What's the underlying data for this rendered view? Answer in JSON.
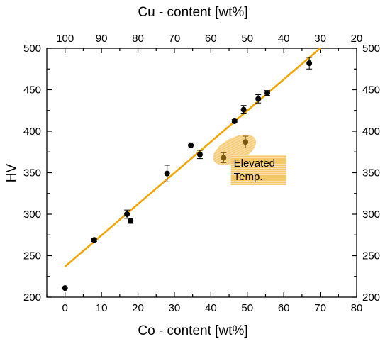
{
  "chart_data": {
    "type": "scatter",
    "xlabel": "Co - content [wt%]",
    "x2label": "Cu - content [wt%]",
    "ylabel": "HV",
    "xlim": [
      -5,
      80
    ],
    "ylim": [
      200,
      500
    ],
    "x_ticks": [
      "0",
      "10",
      "20",
      "30",
      "40",
      "50",
      "60",
      "70",
      "80"
    ],
    "x_tick_values": [
      0,
      10,
      20,
      30,
      40,
      50,
      60,
      70,
      80
    ],
    "x2_ticks": [
      "100",
      "90",
      "80",
      "70",
      "60",
      "50",
      "40",
      "30",
      "20"
    ],
    "x2_tick_values": [
      100,
      90,
      80,
      70,
      60,
      50,
      40,
      30,
      20
    ],
    "y_ticks": [
      "200",
      "250",
      "300",
      "350",
      "400",
      "450",
      "500"
    ],
    "y_tick_values": [
      200,
      250,
      300,
      350,
      400,
      450,
      500
    ],
    "grid": false,
    "colors": {
      "fit_line": "#f0a500",
      "points": "#000000",
      "elevated_points": "#7a5a10",
      "highlight": "#f4c76b"
    },
    "series": [
      {
        "x": [
          0,
          8,
          17,
          18,
          28,
          34.5,
          37,
          46.5,
          49,
          53,
          55.5,
          67
        ],
        "y": [
          211,
          269,
          300,
          292,
          349,
          383,
          372,
          412,
          426,
          439,
          446,
          482
        ],
        "err": [
          0,
          2,
          5,
          3,
          10,
          3,
          5,
          2,
          5,
          5,
          3,
          7
        ]
      },
      {
        "x": [
          43.5,
          49.5
        ],
        "y": [
          368,
          387
        ],
        "err": [
          6,
          7
        ]
      }
    ],
    "fit_line": {
      "x": [
        0,
        70
      ],
      "y": [
        237,
        500
      ]
    },
    "annotations": [
      {
        "lines": [
          "Elevated",
          "Temp."
        ],
        "x": 45.5,
        "y": 365
      }
    ]
  }
}
